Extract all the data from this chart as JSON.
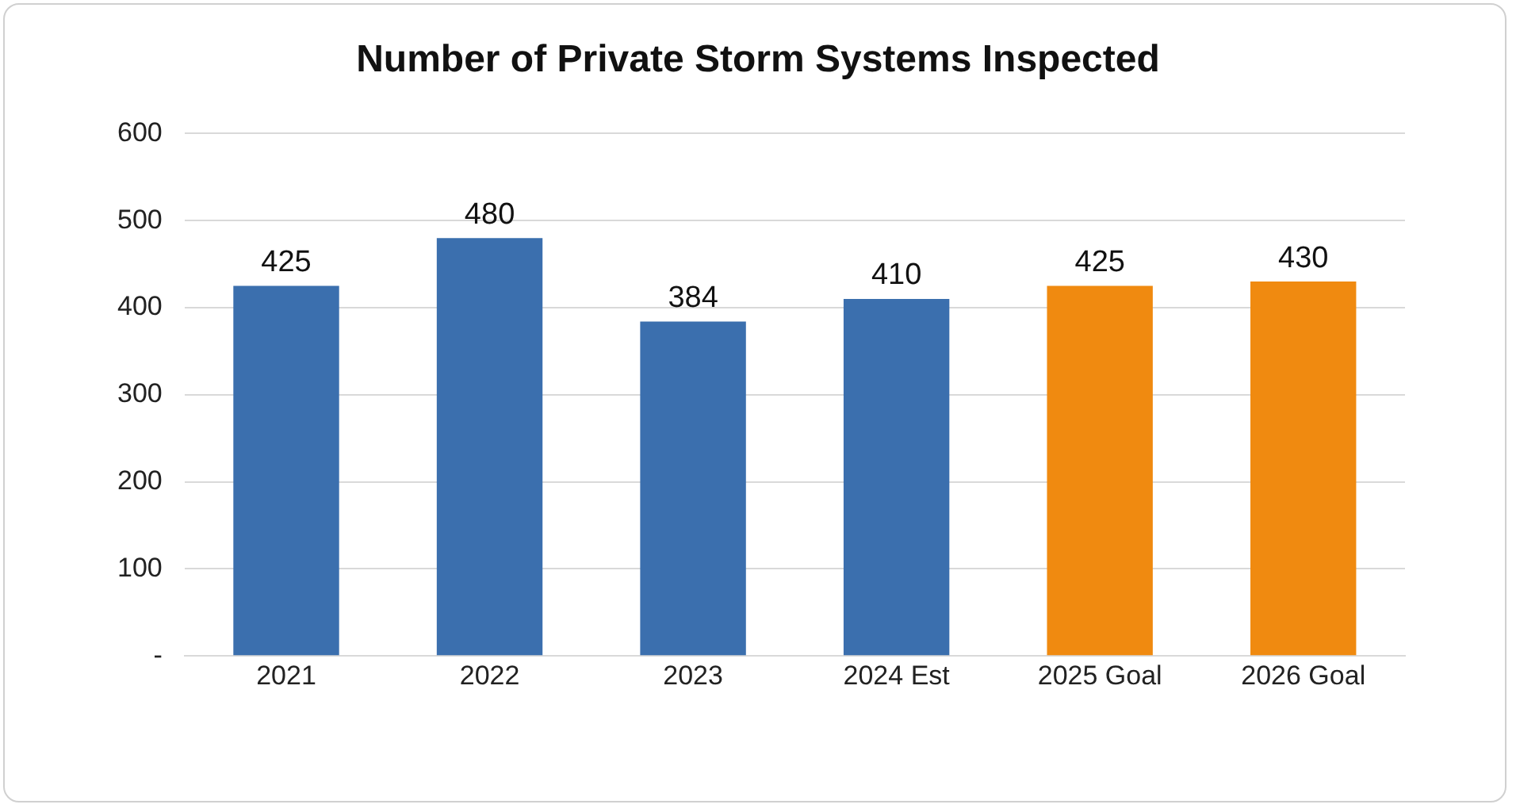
{
  "chart_data": {
    "type": "bar",
    "title": "Number of Private Storm Systems Inspected",
    "categories": [
      "2021",
      "2022",
      "2023",
      "2024 Est",
      "2025 Goal",
      "2026 Goal"
    ],
    "values": [
      425,
      480,
      384,
      410,
      425,
      430
    ],
    "colors": [
      "#3b6fae",
      "#3b6fae",
      "#3b6fae",
      "#3b6fae",
      "#f08a10",
      "#f08a10"
    ],
    "ylim": [
      0,
      600
    ],
    "yticks": [
      {
        "value": 0,
        "label": "-"
      },
      100,
      200,
      300,
      400,
      500,
      600
    ],
    "grid": "y",
    "data_labels": true,
    "legend": false
  }
}
